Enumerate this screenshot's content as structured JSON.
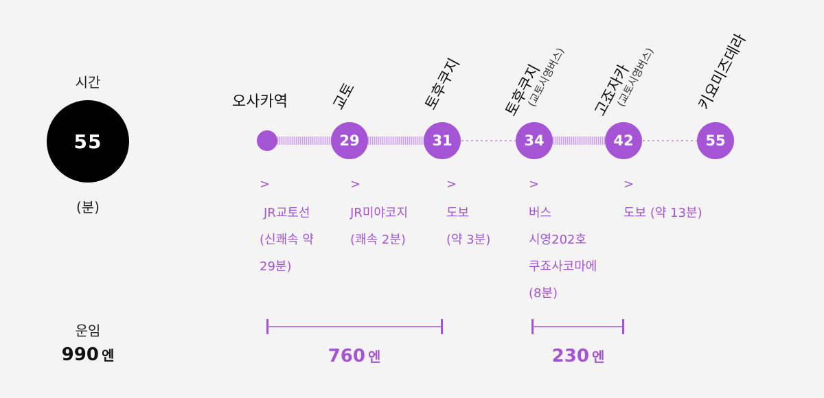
{
  "left": {
    "time_label": "시간",
    "time_value": "55",
    "time_unit": "(분)",
    "fare_label": "운임",
    "fare_total_value": "990",
    "fare_total_unit": "엔"
  },
  "stations": [
    {
      "name": "오사카역",
      "sub": "",
      "time": ""
    },
    {
      "name": "교토",
      "sub": "",
      "time": "29"
    },
    {
      "name": "토후쿠지",
      "sub": "",
      "time": "31"
    },
    {
      "name": "토후쿠지",
      "sub": "(교토시영버스)",
      "time": "34"
    },
    {
      "name": "고죠자카",
      "sub": "(교토시영버스)",
      "time": "42"
    },
    {
      "name": "키요미즈데라",
      "sub": "",
      "time": "55"
    }
  ],
  "legs": [
    {
      "arrow": ">",
      "lines": [
        "JR교토선",
        "(신쾌속 약",
        "29분)"
      ]
    },
    {
      "arrow": ">",
      "lines": [
        "JR미야코지",
        "(쾌속 2분)"
      ]
    },
    {
      "arrow": ">",
      "lines": [
        "도보",
        "(약  3분)"
      ]
    },
    {
      "arrow": ">",
      "lines": [
        "버스",
        "시영202호",
        "쿠죠사코마에",
        "(8분)"
      ]
    },
    {
      "arrow": ">",
      "lines": [
        "도보 (약  13분)"
      ]
    }
  ],
  "fares": [
    {
      "value": "760",
      "unit": "엔"
    },
    {
      "value": "230",
      "unit": "엔"
    }
  ],
  "colors": {
    "accent": "#a454d4",
    "line_light": "#d9bdef",
    "dark": "#000000"
  }
}
